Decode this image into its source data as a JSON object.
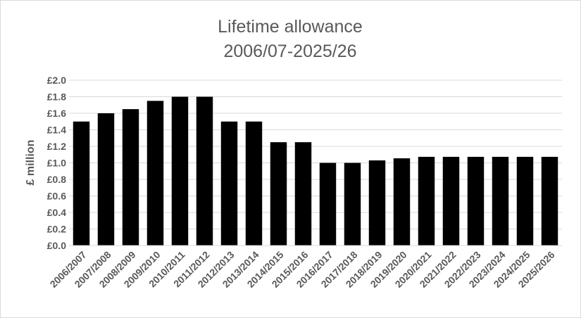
{
  "chart_data": {
    "type": "bar",
    "title": "Lifetime allowance",
    "subtitle": "2006/07-2025/26",
    "xlabel": "",
    "ylabel": "£ million",
    "ylim": [
      0,
      2.0
    ],
    "ytick_step": 0.2,
    "ytick_labels": [
      "£0.0",
      "£0.2",
      "£0.4",
      "£0.6",
      "£0.8",
      "£1.0",
      "£1.2",
      "£1.4",
      "£1.6",
      "£1.8",
      "£2.0"
    ],
    "grid": true,
    "legend": "none",
    "categories": [
      "2006/2007",
      "2007/2008",
      "2008/2009",
      "2009/2010",
      "2010/2011",
      "2011/2012",
      "2012/2013",
      "2013/2014",
      "2014/2015",
      "2015/2016",
      "2016/2017",
      "2017/2018",
      "2018/2019",
      "2019/2020",
      "2020/2021",
      "2021/2022",
      "2022/2023",
      "2023/2024",
      "2024/2025",
      "2025/2026"
    ],
    "values": [
      1.5,
      1.6,
      1.65,
      1.75,
      1.8,
      1.8,
      1.5,
      1.5,
      1.25,
      1.25,
      1.0,
      1.0,
      1.03,
      1.055,
      1.073,
      1.073,
      1.073,
      1.073,
      1.073,
      1.073
    ],
    "colors": {
      "bar": "#000000",
      "grid": "#d9d9d9",
      "text": "#595959"
    }
  }
}
